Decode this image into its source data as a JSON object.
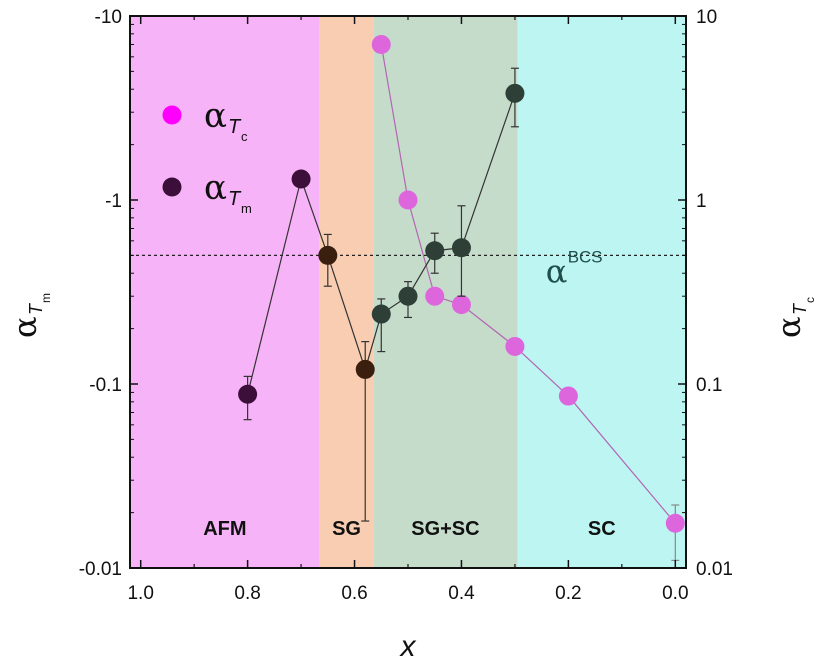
{
  "chart_data": {
    "type": "scatter",
    "title": "",
    "xlabel": "x",
    "ylabel_left": {
      "symbol": "α",
      "sub": "T",
      "subsub": "m"
    },
    "ylabel_right": {
      "symbol": "α",
      "sub": "T",
      "subsub": "c"
    },
    "xlim": [
      1.02,
      -0.02
    ],
    "ylim_left_mag": [
      0.01,
      10
    ],
    "ylim_right": [
      0.01,
      10
    ],
    "x_ticks": [
      {
        "v": 1.0,
        "label": "1.0"
      },
      {
        "v": 0.8,
        "label": "0.8"
      },
      {
        "v": 0.6,
        "label": "0.6"
      },
      {
        "v": 0.4,
        "label": "0.4"
      },
      {
        "v": 0.2,
        "label": "0.2"
      },
      {
        "v": 0.0,
        "label": "0.0"
      }
    ],
    "y_ticks_left": [
      {
        "v": 10,
        "label": "-10"
      },
      {
        "v": 1,
        "label": "-1"
      },
      {
        "v": 0.1,
        "label": "-0.1"
      },
      {
        "v": 0.01,
        "label": "-0.01"
      }
    ],
    "y_ticks_right": [
      {
        "v": 10,
        "label": "10"
      },
      {
        "v": 1,
        "label": "1"
      },
      {
        "v": 0.1,
        "label": "0.1"
      },
      {
        "v": 0.01,
        "label": "0.01"
      }
    ],
    "regions": [
      {
        "name": "AFM",
        "x_start": 1.02,
        "x_end": 0.665,
        "color": "#f7b3f7"
      },
      {
        "name": "SG",
        "x_start": 0.665,
        "x_end": 0.565,
        "color": "#f9cdb2"
      },
      {
        "name": "SG+SC",
        "x_start": 0.565,
        "x_end": 0.295,
        "color": "#c6dccb"
      },
      {
        "name": "SC",
        "x_start": 0.295,
        "x_end": -0.02,
        "color": "#bdf5f3"
      }
    ],
    "region_label_y": 0.0165,
    "reference_line": {
      "name": "α",
      "superscript": "BCS",
      "value": 0.5,
      "label_x": 0.22
    },
    "series": [
      {
        "name": "α_Tc",
        "axis": "right",
        "color": "#dd66dd",
        "line_color": "#b266b2",
        "points": [
          {
            "x": 0.55,
            "y": 7.0
          },
          {
            "x": 0.5,
            "y": 1.0
          },
          {
            "x": 0.45,
            "y": 0.3
          },
          {
            "x": 0.4,
            "y": 0.27
          },
          {
            "x": 0.3,
            "y": 0.16
          },
          {
            "x": 0.2,
            "y": 0.086
          },
          {
            "x": 0.0,
            "y": 0.0175,
            "err_low": 0.011,
            "err_high": 0.022
          }
        ]
      },
      {
        "name": "α_Tm",
        "axis": "left",
        "color_afm": "#3c0f3a",
        "color_sg": "#3a1e0e",
        "color_sgsc": "#2e3f37",
        "line_color": "#333333",
        "points": [
          {
            "x": 0.8,
            "y": 0.088,
            "err_low": 0.064,
            "err_high": 0.11,
            "c": "#3c0f3a"
          },
          {
            "x": 0.7,
            "y": 1.3,
            "c": "#3c0f3a"
          },
          {
            "x": 0.65,
            "y": 0.5,
            "err_low": 0.34,
            "err_high": 0.65,
            "c": "#3a1e0e"
          },
          {
            "x": 0.58,
            "y": 0.12,
            "err_low": 0.018,
            "err_high": 0.17,
            "c": "#3a1e0e"
          },
          {
            "x": 0.55,
            "y": 0.24,
            "err_low": 0.15,
            "err_high": 0.29,
            "c": "#2e3f37"
          },
          {
            "x": 0.5,
            "y": 0.3,
            "err_low": 0.23,
            "err_high": 0.36,
            "c": "#2e3f37"
          },
          {
            "x": 0.45,
            "y": 0.53,
            "err_low": 0.4,
            "err_high": 0.66,
            "c": "#2e3f37"
          },
          {
            "x": 0.4,
            "y": 0.55,
            "err_low": 0.3,
            "err_high": 0.93,
            "c": "#2e3f37"
          },
          {
            "x": 0.3,
            "y": 3.8,
            "err_low": 2.5,
            "err_high": 5.2,
            "c": "#2e3f37"
          }
        ]
      }
    ],
    "legend": {
      "placement": "top-left",
      "items": [
        {
          "symbol": "α",
          "sub": "T",
          "subsub": "c",
          "color": "#ff00ff"
        },
        {
          "symbol": "α",
          "sub": "T",
          "subsub": "m",
          "color": "#3c0f3a"
        }
      ]
    }
  }
}
